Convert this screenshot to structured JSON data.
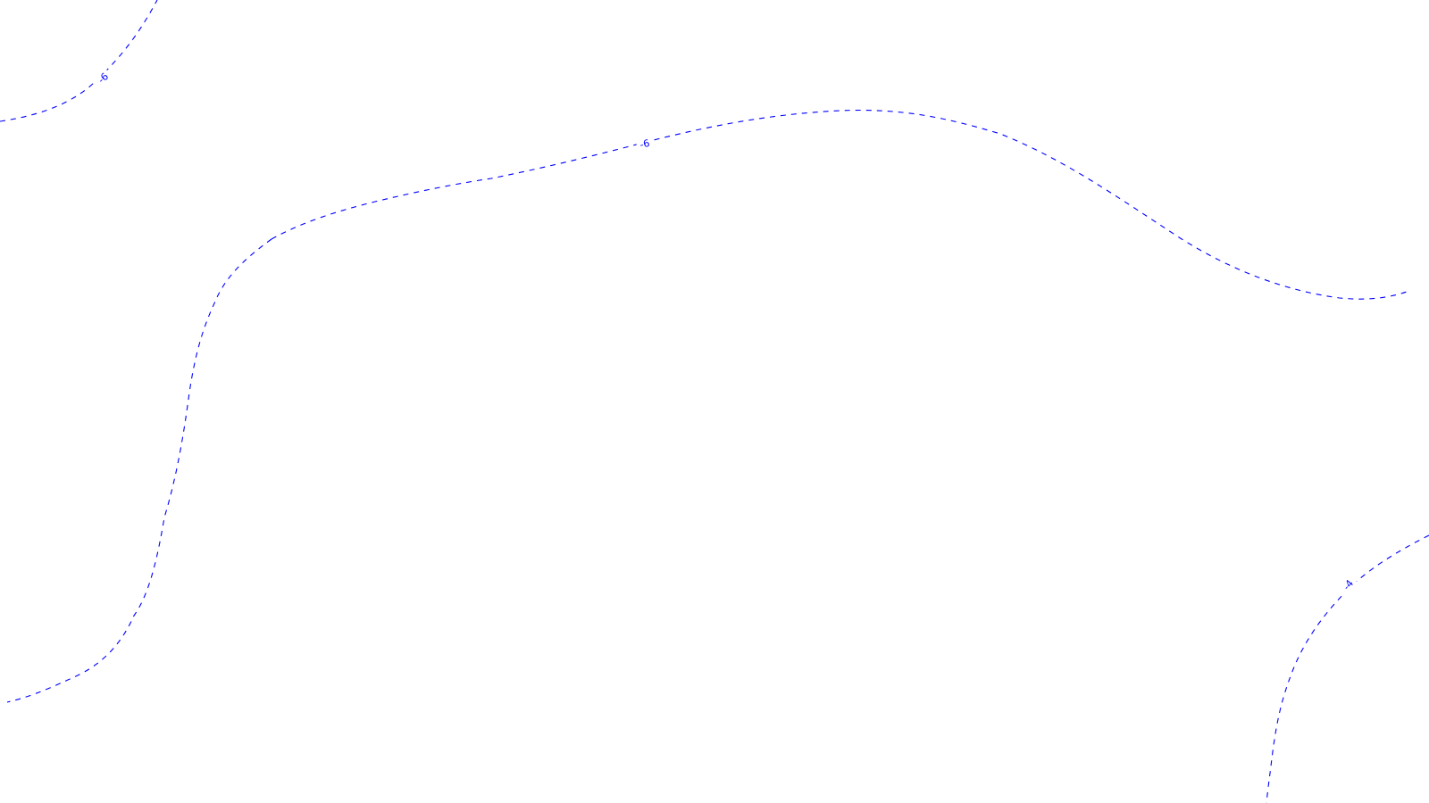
{
  "chart_data": {
    "type": "contour",
    "title": "",
    "xlabel": "",
    "ylabel": "",
    "grid": false,
    "legend": "none",
    "line_color": "#0000ff",
    "line_style": "dashed",
    "levels": [
      {
        "name": "contour-top-left",
        "level": -6,
        "label": "-6"
      },
      {
        "name": "contour-upper",
        "level": -6,
        "label": "-6"
      },
      {
        "name": "contour-left",
        "level": -6,
        "label": ""
      },
      {
        "name": "contour-bottom-right",
        "level": -4,
        "label": "-4"
      }
    ]
  }
}
